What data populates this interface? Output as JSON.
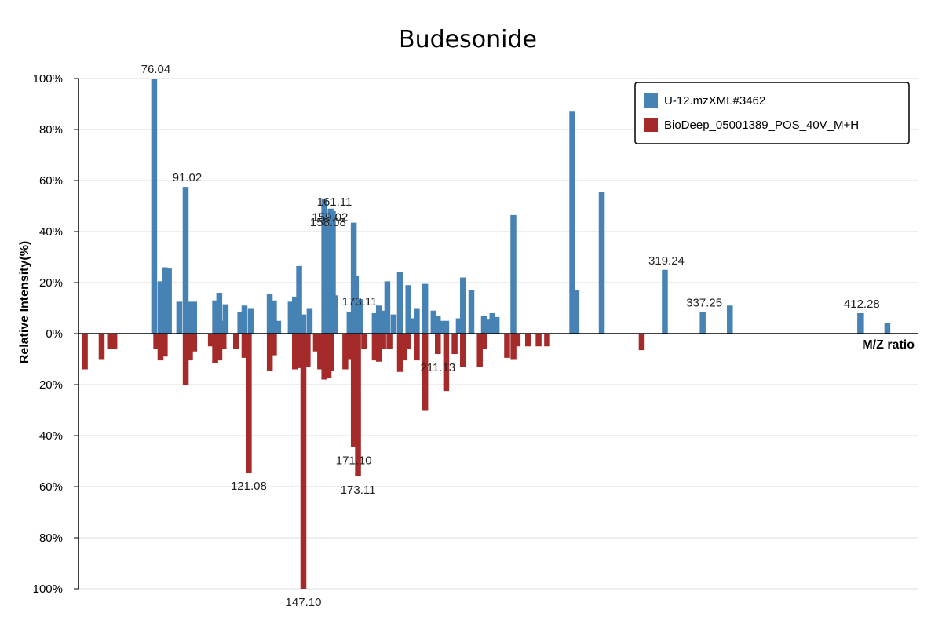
{
  "chart_data": {
    "type": "bar",
    "title": "Budesonide",
    "ylabel": "Relative Intensity(%)",
    "xlabel": "M/Z ratio",
    "ylim_top": [
      0,
      100
    ],
    "ylim_bottom": [
      0,
      100
    ],
    "xlim": [
      40,
      440
    ],
    "y_ticks_top": [
      "0%",
      "20%",
      "40%",
      "60%",
      "80%",
      "100%"
    ],
    "y_ticks_bottom": [
      "20%",
      "40%",
      "60%",
      "80%",
      "100%"
    ],
    "grid": true,
    "legend_position": "top-right",
    "colors": {
      "top": "#4682b4",
      "bottom": "#a52a2a"
    },
    "series": [
      {
        "name": "U-12.mzXML#3462",
        "direction": "up",
        "x": [
          76.04,
          79.05,
          81.07,
          83.05,
          88.0,
          91.02,
          93.07,
          95.05,
          105.07,
          107.05,
          109.06,
          110.06,
          117.07,
          119.05,
          122.07,
          131.05,
          133.06,
          135.08,
          141.07,
          143.09,
          145.07,
          147.07,
          150.06,
          157.06,
          158.08,
          159.02,
          160.06,
          161.11,
          162.05,
          169.09,
          171.07,
          172.09,
          173.11,
          174.09,
          181.07,
          183.06,
          185.11,
          187.07,
          190.06,
          193.07,
          197.09,
          199.07,
          201.08,
          205.1,
          209.09,
          211.1,
          213.1,
          215.11,
          221.1,
          223.09,
          227.1,
          233.08,
          235.1,
          237.11,
          239.11,
          247.1,
          275.16,
          277.15,
          289.17,
          319.24,
          337.25,
          350.2,
          412.28,
          425.2
        ],
        "values": [
          100,
          20.5,
          26,
          25.5,
          12.5,
          57.5,
          12.5,
          12.5,
          13,
          16,
          5,
          11.5,
          8.5,
          11,
          10,
          15.5,
          13,
          5,
          12.5,
          14.5,
          26.5,
          7.5,
          10,
          53,
          40,
          42,
          49,
          48,
          15,
          8.5,
          43.5,
          22.5,
          9,
          13.5,
          8,
          11,
          9,
          20.5,
          7.5,
          24,
          19,
          6,
          10,
          19.5,
          9,
          7,
          5,
          5,
          6,
          22,
          17,
          7,
          5.5,
          8,
          6.5,
          46.5,
          87,
          17,
          55.5,
          25,
          8.5,
          11,
          8,
          4
        ],
        "labels": [
          {
            "mz": 76.04,
            "text": "76.04"
          },
          {
            "mz": 91.02,
            "text": "91.02"
          },
          {
            "mz": 159.02,
            "text": "159.02"
          },
          {
            "mz": 161.11,
            "text": "161.11"
          },
          {
            "mz": 158.08,
            "text": "158.08"
          },
          {
            "mz": 173.11,
            "text": "173.11"
          },
          {
            "mz": 319.24,
            "text": "319.24"
          },
          {
            "mz": 337.25,
            "text": "337.25"
          },
          {
            "mz": 412.28,
            "text": "412.28"
          }
        ]
      },
      {
        "name": "BioDeep_05001389_POS_40V_M+H",
        "direction": "down",
        "x": [
          43.02,
          51.02,
          55.05,
          57.07,
          77.04,
          79.05,
          81.07,
          91.05,
          93.07,
          95.05,
          103.05,
          105.07,
          107.09,
          109.06,
          115.05,
          119.05,
          121.08,
          131.09,
          133.06,
          143.09,
          145.1,
          147.1,
          149.1,
          153.07,
          155.08,
          157.08,
          159.08,
          160.1,
          167.06,
          169.08,
          171.1,
          173.11,
          176.06,
          181.1,
          183.08,
          185.1,
          188.07,
          193.09,
          195.09,
          197.11,
          201.1,
          205.1,
          211.13,
          215.1,
          219.1,
          223.09,
          231.11,
          233.12,
          244.1,
          247.14,
          249.1,
          254.1,
          259.1,
          263.15,
          308.2
        ],
        "values": [
          14,
          10,
          6,
          6,
          6,
          10.5,
          9,
          20,
          10.5,
          7,
          5,
          11.5,
          10.5,
          6,
          6,
          9.5,
          54.5,
          14.5,
          8.5,
          14,
          13.5,
          100,
          13,
          7,
          14,
          18,
          17.5,
          14.5,
          14,
          10,
          44.5,
          56,
          6,
          10.5,
          11,
          6,
          6,
          15,
          10.5,
          6,
          10.5,
          30,
          8,
          22.5,
          8,
          13,
          13,
          6,
          9.5,
          10,
          5,
          5,
          5,
          5,
          6.5
        ],
        "labels": [
          {
            "mz": 121.08,
            "text": "121.08"
          },
          {
            "mz": 147.1,
            "text": "147.10"
          },
          {
            "mz": 171.1,
            "text": "171.10"
          },
          {
            "mz": 173.11,
            "text": "173.11"
          },
          {
            "mz": 211.13,
            "text": "211.13"
          }
        ]
      }
    ]
  }
}
